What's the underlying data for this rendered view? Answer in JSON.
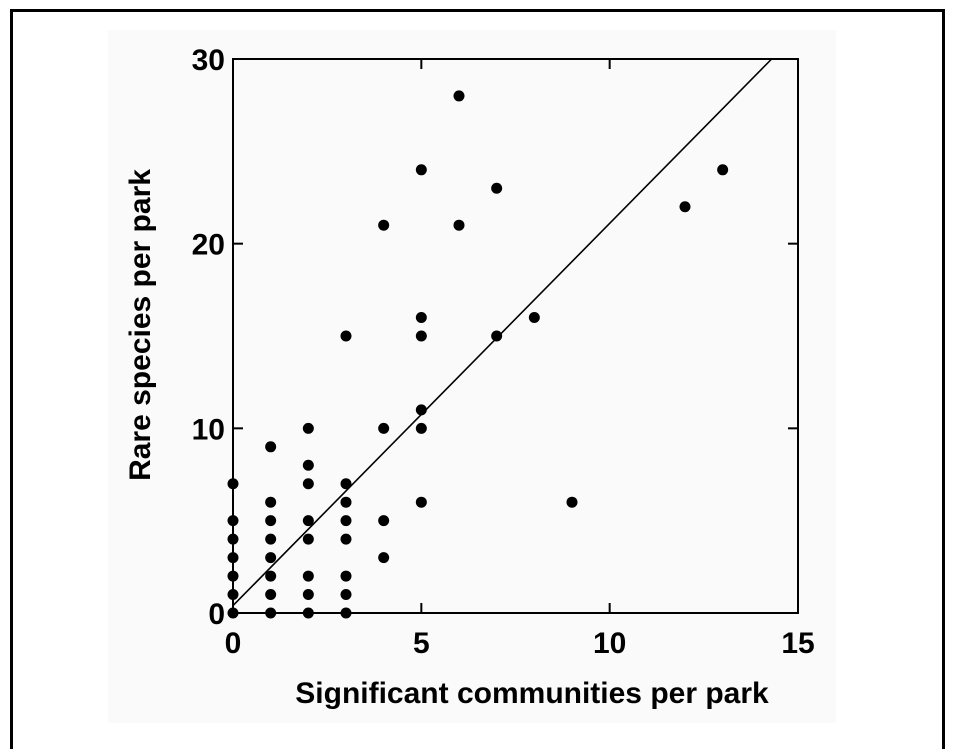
{
  "chart_data": {
    "type": "scatter",
    "xlabel": "Significant communities per park",
    "ylabel": "Rare species per park",
    "xlim": [
      0,
      15
    ],
    "ylim": [
      0,
      30
    ],
    "x_ticks": [
      0,
      5,
      10,
      15
    ],
    "y_ticks": [
      0,
      10,
      20,
      30
    ],
    "x_tick_labels": [
      "0",
      "5",
      "10",
      "15"
    ],
    "y_tick_labels": [
      "0",
      "10",
      "20",
      "30"
    ],
    "grid": false,
    "legend": "none",
    "point_color": "#000000",
    "line_color": "#000000",
    "points": [
      [
        0,
        0
      ],
      [
        0,
        1
      ],
      [
        0,
        2
      ],
      [
        0,
        3
      ],
      [
        0,
        4
      ],
      [
        0,
        5
      ],
      [
        0,
        7
      ],
      [
        1,
        0
      ],
      [
        1,
        1
      ],
      [
        1,
        2
      ],
      [
        1,
        3
      ],
      [
        1,
        4
      ],
      [
        1,
        5
      ],
      [
        1,
        6
      ],
      [
        1,
        9
      ],
      [
        2,
        0
      ],
      [
        2,
        1
      ],
      [
        2,
        2
      ],
      [
        2,
        4
      ],
      [
        2,
        5
      ],
      [
        2,
        7
      ],
      [
        2,
        8
      ],
      [
        2,
        10
      ],
      [
        3,
        0
      ],
      [
        3,
        1
      ],
      [
        3,
        2
      ],
      [
        3,
        4
      ],
      [
        3,
        5
      ],
      [
        3,
        6
      ],
      [
        3,
        7
      ],
      [
        3,
        15
      ],
      [
        4,
        3
      ],
      [
        4,
        5
      ],
      [
        4,
        10
      ],
      [
        4,
        21
      ],
      [
        5,
        6
      ],
      [
        5,
        10
      ],
      [
        5,
        11
      ],
      [
        5,
        15
      ],
      [
        5,
        16
      ],
      [
        5,
        24
      ],
      [
        6,
        21
      ],
      [
        6,
        28
      ],
      [
        7,
        15
      ],
      [
        7,
        23
      ],
      [
        8,
        16
      ],
      [
        9,
        6
      ],
      [
        12,
        22
      ],
      [
        13,
        24
      ]
    ],
    "fit_line": {
      "x": [
        0,
        14.3
      ],
      "y": [
        0.4,
        30
      ]
    }
  }
}
